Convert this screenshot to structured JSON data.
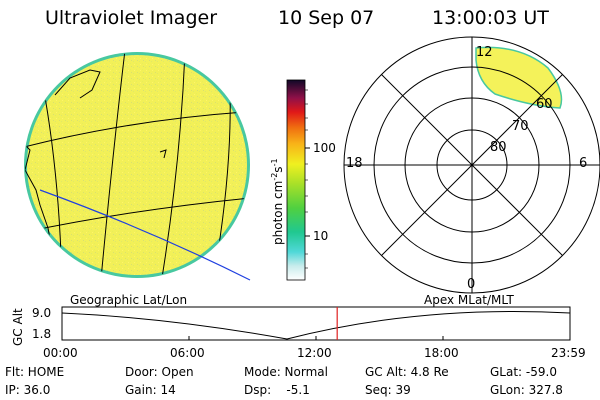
{
  "header": {
    "instrument": "Ultraviolet Imager",
    "date": "10 Sep 07",
    "time": "13:00:03 UT"
  },
  "colors": {
    "disk_fill": "#f4f25a",
    "disk_edge": "#48c8a0",
    "polar_blob": "#f4f25a"
  },
  "colorbar": {
    "unit_label": "photon cm",
    "unit_exp1": "-2",
    "unit_mid": "s",
    "unit_exp2": "-1",
    "tick_100": "100",
    "tick_10": "10"
  },
  "polar_plot": {
    "mlt_top": "12",
    "mlt_left": "18",
    "mlt_right": "6",
    "mlt_bottom": "0",
    "lat_60": "60",
    "lat_70": "70",
    "lat_80": "80"
  },
  "panel_labels": {
    "left": "Geographic Lat/Lon",
    "right": "Apex MLat/MLT"
  },
  "timeline": {
    "y_label": "GC Alt",
    "y_max": "9.0",
    "y_min": "1.8",
    "ticks": [
      "00:00",
      "06:00",
      "12:00",
      "18:00",
      "23:59"
    ],
    "current_time_fraction": 0.5417
  },
  "info": {
    "flt": "Flt: HOME",
    "ip": "IP: 36.0",
    "door": "Door: Open",
    "gain": "Gain: 14",
    "mode": "Mode: Normal",
    "dsp": "Dsp:    -5.1",
    "gc_alt": "GC Alt: 4.8 Re",
    "seq": "Seq: 39",
    "glat": "GLat: -59.0",
    "glon": "GLon: 327.8"
  }
}
